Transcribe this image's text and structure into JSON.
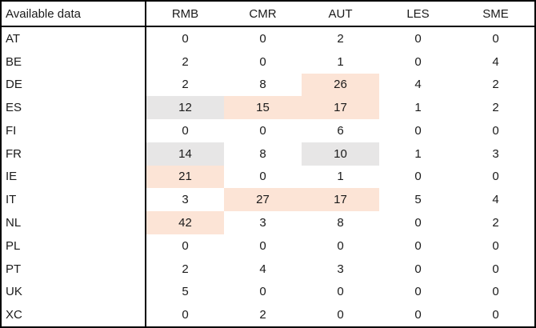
{
  "colors": {
    "highlight_orange": "#fce4d6",
    "highlight_gray": "#e7e6e6",
    "border": "#000000",
    "text": "#1a1a1a",
    "background": "#ffffff"
  },
  "table": {
    "corner_label": "Available data",
    "columns": [
      "RMB",
      "CMR",
      "AUT",
      "LES",
      "SME"
    ],
    "rows": [
      {
        "label": "AT",
        "values": [
          "0",
          "0",
          "2",
          "0",
          "0"
        ],
        "highlights": [
          "",
          "",
          "",
          "",
          ""
        ]
      },
      {
        "label": "BE",
        "values": [
          "2",
          "0",
          "1",
          "0",
          "4"
        ],
        "highlights": [
          "",
          "",
          "",
          "",
          ""
        ]
      },
      {
        "label": "DE",
        "values": [
          "2",
          "8",
          "26",
          "4",
          "2"
        ],
        "highlights": [
          "",
          "",
          "orange",
          "",
          ""
        ]
      },
      {
        "label": "ES",
        "values": [
          "12",
          "15",
          "17",
          "1",
          "2"
        ],
        "highlights": [
          "gray",
          "orange",
          "orange",
          "",
          ""
        ]
      },
      {
        "label": "FI",
        "values": [
          "0",
          "0",
          "6",
          "0",
          "0"
        ],
        "highlights": [
          "",
          "",
          "",
          "",
          ""
        ]
      },
      {
        "label": "FR",
        "values": [
          "14",
          "8",
          "10",
          "1",
          "3"
        ],
        "highlights": [
          "gray",
          "",
          "gray",
          "",
          ""
        ]
      },
      {
        "label": "IE",
        "values": [
          "21",
          "0",
          "1",
          "0",
          "0"
        ],
        "highlights": [
          "orange",
          "",
          "",
          "",
          ""
        ]
      },
      {
        "label": "IT",
        "values": [
          "3",
          "27",
          "17",
          "5",
          "4"
        ],
        "highlights": [
          "",
          "orange",
          "orange",
          "",
          ""
        ]
      },
      {
        "label": "NL",
        "values": [
          "42",
          "3",
          "8",
          "0",
          "2"
        ],
        "highlights": [
          "orange",
          "",
          "",
          "",
          ""
        ]
      },
      {
        "label": "PL",
        "values": [
          "0",
          "0",
          "0",
          "0",
          "0"
        ],
        "highlights": [
          "",
          "",
          "",
          "",
          ""
        ]
      },
      {
        "label": "PT",
        "values": [
          "2",
          "4",
          "3",
          "0",
          "0"
        ],
        "highlights": [
          "",
          "",
          "",
          "",
          ""
        ]
      },
      {
        "label": "UK",
        "values": [
          "5",
          "0",
          "0",
          "0",
          "0"
        ],
        "highlights": [
          "",
          "",
          "",
          "",
          ""
        ]
      },
      {
        "label": "XC",
        "values": [
          "0",
          "2",
          "0",
          "0",
          "0"
        ],
        "highlights": [
          "",
          "",
          "",
          "",
          ""
        ]
      }
    ]
  }
}
